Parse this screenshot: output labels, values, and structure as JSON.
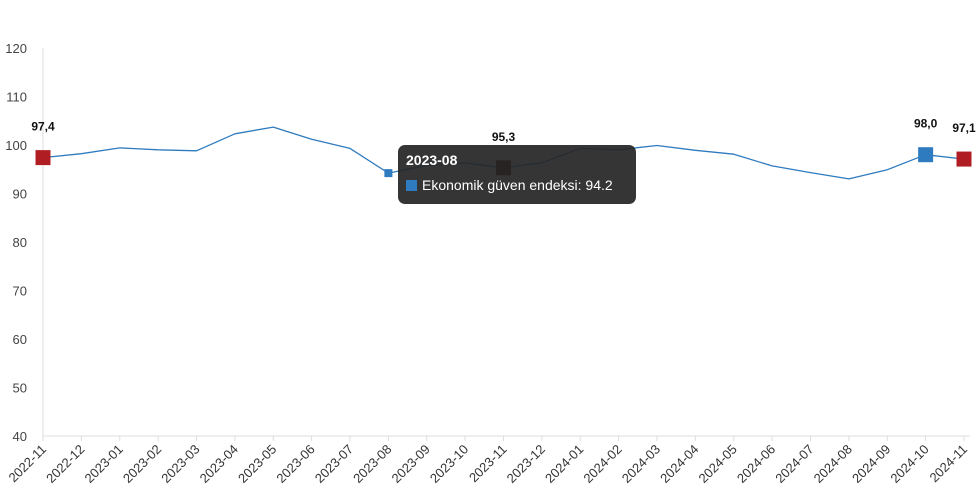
{
  "colors": {
    "line": "#2e7bbf",
    "marker_red": "#b01e24",
    "marker_blue": "#2e7bbf",
    "marker_dark": "#3a0000",
    "grid_axis": "#dddddd"
  },
  "tooltip": {
    "title": "2023-08",
    "series_label": "Ekonomik güven endeksi: 94.2"
  },
  "chart_data": {
    "type": "line",
    "x": [
      "2022-11",
      "2022-12",
      "2023-01",
      "2023-02",
      "2023-03",
      "2023-04",
      "2023-05",
      "2023-06",
      "2023-07",
      "2023-08",
      "2023-09",
      "2023-10",
      "2023-11",
      "2023-12",
      "2024-01",
      "2024-02",
      "2024-03",
      "2024-04",
      "2024-05",
      "2024-06",
      "2024-07",
      "2024-08",
      "2024-09",
      "2024-10",
      "2024-11"
    ],
    "series": [
      {
        "values": [
          97.4,
          98.2,
          99.4,
          99.0,
          98.8,
          102.3,
          103.7,
          101.2,
          99.3,
          94.2,
          95.8,
          96.3,
          95.3,
          96.3,
          99.3,
          99.0,
          99.9,
          98.9,
          98.1,
          95.7,
          94.3,
          93.0,
          94.9,
          98.0,
          97.1
        ]
      }
    ],
    "ylim": [
      40,
      120
    ],
    "yticks": [
      40,
      50,
      60,
      70,
      80,
      90,
      100,
      110,
      120
    ],
    "grid": false,
    "markers": [
      {
        "x": "2022-11",
        "value": 97.4,
        "label": "97,4",
        "color": "#b01e24"
      },
      {
        "x": "2023-11",
        "value": 95.3,
        "label": "95,3",
        "color": "#3a0000"
      },
      {
        "x": "2024-10",
        "value": 98.0,
        "label": "98,0",
        "color": "#2e7bbf"
      },
      {
        "x": "2024-11",
        "value": 97.1,
        "label": "97,1",
        "color": "#b01e24"
      }
    ],
    "highlight": {
      "x": "2023-08",
      "value": 94.2
    }
  }
}
